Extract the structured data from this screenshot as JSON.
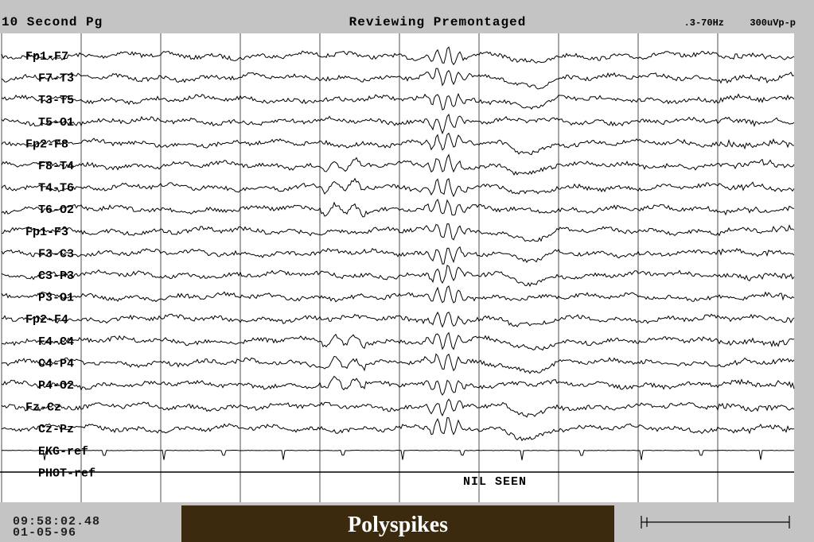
{
  "header": {
    "page": "10 Second Pg",
    "mode": "Reviewing Premontaged",
    "filter": ".3-70Hz",
    "sensitivity": "300uVp-p"
  },
  "channels": [
    "Fp1-F7",
    "F7-T3",
    "T3-T5",
    "T5-O1",
    "Fp2-F8",
    "F8-T4",
    "T4-T6",
    "T6-O2",
    "Fp1-F3",
    "F3-C3",
    "C3-P3",
    "P3-O1",
    "Fp2-F4",
    "F4-C4",
    "C4-P4",
    "P4-O2",
    "Fz-Cz",
    "Cz-Pz",
    "EKG-ref",
    "PHOT-ref"
  ],
  "photic_note": "NIL SEEN",
  "footer": {
    "time": "09:58:02.48",
    "date": "01-05-96",
    "caption": "Polyspikes"
  }
}
